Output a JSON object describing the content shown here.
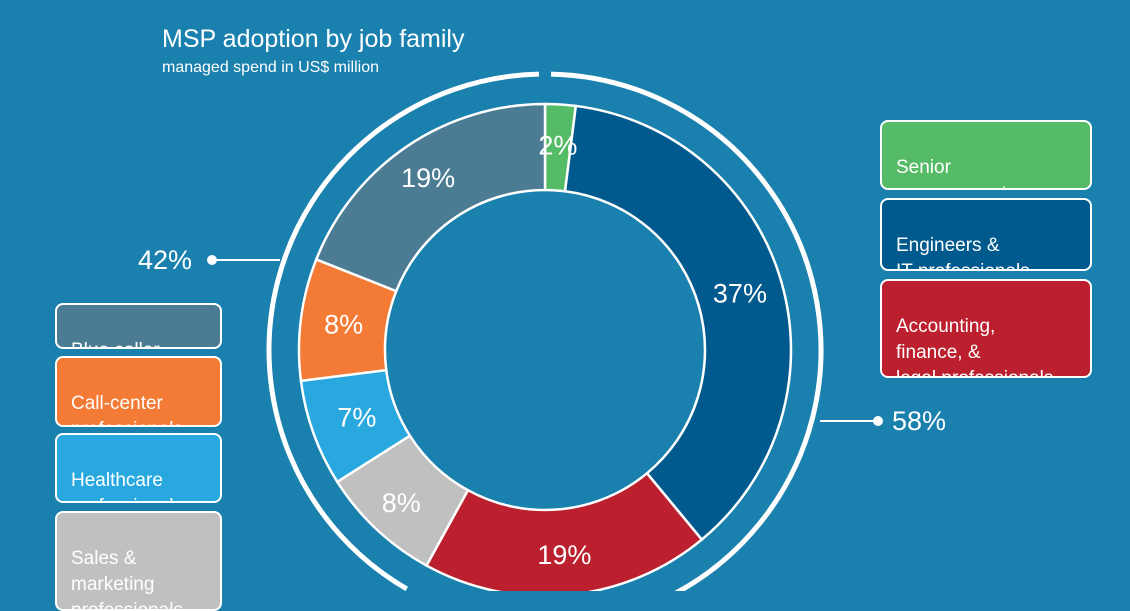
{
  "title": "MSP adoption by job family",
  "subtitle": "managed spend in US$ million",
  "colors": {
    "background": "#1a80ae",
    "senior_management": "#55bb66",
    "engineers_it": "#005a8e",
    "accounting_finance_legal": "#bc1f2e",
    "sales_marketing": "#c0c0c0",
    "healthcare": "#29a8e0",
    "call_center": "#f47b35",
    "blue_collar": "#4c7c94"
  },
  "legend_right": [
    {
      "label": "Senior\nmanagement",
      "color": "#55bb66"
    },
    {
      "label": "Engineers &\nIT professionals",
      "color": "#005a8e"
    },
    {
      "label": "Accounting,\nfinance, &\nlegal professionals",
      "color": "#bc1f2e"
    }
  ],
  "legend_left": [
    {
      "label": "Blue collar",
      "color": "#4c7c94"
    },
    {
      "label": "Call-center\nprofessionals",
      "color": "#f47b35"
    },
    {
      "label": "Healthcare\nprofessionals",
      "color": "#29a8e0"
    },
    {
      "label": "Sales &\nmarketing\nprofessionals",
      "color": "#c0c0c0"
    }
  ],
  "group_totals": {
    "left": "42%",
    "right": "58%"
  },
  "chart_data": {
    "type": "pie",
    "style": "donut",
    "title": "MSP adoption by job family",
    "subtitle": "managed spend in US$ million",
    "categories": [
      "Senior management",
      "Engineers & IT professionals",
      "Accounting, finance, & legal professionals",
      "Sales & marketing professionals",
      "Healthcare professionals",
      "Call-center professionals",
      "Blue collar"
    ],
    "values": [
      2,
      37,
      19,
      8,
      7,
      8,
      19
    ],
    "labels": [
      "2%",
      "37%",
      "19%",
      "8%",
      "7%",
      "8%",
      "19%"
    ],
    "colors": [
      "#55bb66",
      "#005a8e",
      "#bc1f2e",
      "#c0c0c0",
      "#29a8e0",
      "#f47b35",
      "#4c7c94"
    ],
    "groups": [
      {
        "label": "58%",
        "value": 58,
        "members": [
          "Senior management",
          "Engineers & IT professionals",
          "Accounting, finance, & legal professionals"
        ]
      },
      {
        "label": "42%",
        "value": 42,
        "members": [
          "Sales & marketing professionals",
          "Healthcare professionals",
          "Call-center professionals",
          "Blue collar"
        ]
      }
    ],
    "legend_position": "left and right"
  }
}
